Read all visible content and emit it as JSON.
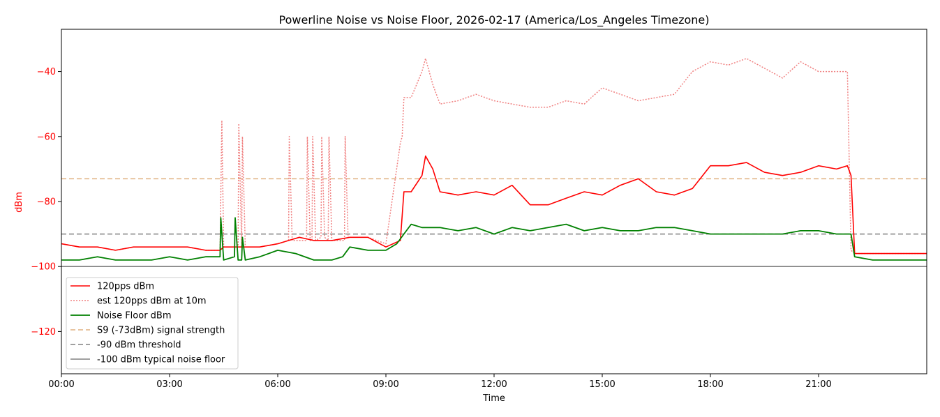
{
  "chart_data": {
    "type": "line",
    "title": "Powerline Noise vs Noise Floor, 2026-02-17 (America/Los_Angeles Timezone)",
    "xlabel": "Time",
    "ylabel": "dBm",
    "xlim": [
      0,
      24
    ],
    "ylim": [
      -133,
      -27
    ],
    "x_ticks": [
      {
        "value": 0,
        "label": "00:00"
      },
      {
        "value": 3,
        "label": "03:00"
      },
      {
        "value": 6,
        "label": "06:00"
      },
      {
        "value": 9,
        "label": "09:00"
      },
      {
        "value": 12,
        "label": "12:00"
      },
      {
        "value": 15,
        "label": "15:00"
      },
      {
        "value": 18,
        "label": "18:00"
      },
      {
        "value": 21,
        "label": "21:00"
      }
    ],
    "y_ticks": [
      {
        "value": -40,
        "label": "−40"
      },
      {
        "value": -60,
        "label": "−60"
      },
      {
        "value": -80,
        "label": "−80"
      },
      {
        "value": -100,
        "label": "−100"
      },
      {
        "value": -120,
        "label": "−120"
      }
    ],
    "grid": false,
    "legend_position": "lower-left",
    "colors": {
      "pps": "#ff0000",
      "est": "#f08080",
      "noise": "#008000",
      "s9": "#e0b080",
      "threshold": "#808080",
      "floor": "#808080",
      "ylabel": "#ff0000"
    },
    "series": [
      {
        "name": "120pps dBm",
        "style": "solid",
        "x": [
          0,
          0.5,
          1,
          1.5,
          2,
          2.5,
          3,
          3.5,
          4,
          4.4,
          4.5,
          4.9,
          5.0,
          5.5,
          6,
          6.3,
          6.6,
          7,
          7.5,
          8,
          8.5,
          9,
          9.4,
          9.5,
          9.7,
          10,
          10.1,
          10.3,
          10.5,
          11,
          11.5,
          12,
          12.5,
          13,
          13.5,
          14,
          14.5,
          15,
          15.5,
          16,
          16.5,
          17,
          17.5,
          18,
          18.5,
          19,
          19.5,
          20,
          20.5,
          21,
          21.5,
          21.8,
          21.9,
          22,
          22.5,
          23,
          24
        ],
        "y": [
          -93,
          -94,
          -94,
          -95,
          -94,
          -94,
          -94,
          -94,
          -95,
          -95,
          -94,
          -94,
          -94,
          -94,
          -93,
          -92,
          -91,
          -92,
          -92,
          -91,
          -91,
          -94,
          -92,
          -77,
          -77,
          -72,
          -66,
          -70,
          -77,
          -78,
          -77,
          -78,
          -75,
          -81,
          -81,
          -79,
          -77,
          -78,
          -75,
          -73,
          -77,
          -78,
          -76,
          -69,
          -69,
          -68,
          -71,
          -72,
          -71,
          -69,
          -70,
          -69,
          -72,
          -96,
          -96,
          -96,
          -96
        ]
      },
      {
        "name": "est 120pps dBm at 10m",
        "style": "dotted",
        "x": [
          0,
          0.5,
          1,
          1.5,
          2,
          2.5,
          3,
          3.5,
          4,
          4.4,
          4.45,
          4.5,
          4.9,
          4.92,
          5.0,
          5.02,
          5.1,
          5.5,
          6,
          6.3,
          6.32,
          6.4,
          6.6,
          6.8,
          6.82,
          6.9,
          6.95,
          6.97,
          7.05,
          7.2,
          7.22,
          7.3,
          7.4,
          7.42,
          7.5,
          7.85,
          7.87,
          7.95,
          8.5,
          9,
          9.4,
          9.45,
          9.5,
          9.7,
          10,
          10.1,
          10.3,
          10.5,
          11,
          11.5,
          12,
          12.5,
          13,
          13.5,
          14,
          14.5,
          15,
          15.5,
          16,
          16.5,
          17,
          17.5,
          18,
          18.5,
          19,
          19.5,
          20,
          20.5,
          21,
          21.5,
          21.8,
          21.9,
          22,
          22.5,
          23,
          24
        ],
        "y": [
          -93,
          -94,
          -94,
          -95,
          -94,
          -94,
          -94,
          -94,
          -95,
          -95,
          -55,
          -94,
          -94,
          -56,
          -94,
          -60,
          -94,
          -94,
          -93,
          -92,
          -60,
          -92,
          -92,
          -92,
          -60,
          -92,
          -92,
          -60,
          -92,
          -91,
          -60,
          -91,
          -92,
          -60,
          -92,
          -92,
          -60,
          -91,
          -91,
          -93,
          -62,
          -60,
          -48,
          -48,
          -40,
          -36,
          -44,
          -50,
          -49,
          -47,
          -49,
          -50,
          -51,
          -51,
          -49,
          -50,
          -45,
          -47,
          -49,
          -48,
          -47,
          -40,
          -37,
          -38,
          -36,
          -39,
          -42,
          -37,
          -40,
          -40,
          -40,
          -95,
          -96,
          -96,
          -96,
          -96
        ]
      },
      {
        "name": "Noise Floor dBm",
        "style": "solid",
        "x": [
          0,
          0.5,
          1,
          1.5,
          2,
          2.5,
          3,
          3.5,
          4,
          4.4,
          4.42,
          4.5,
          4.8,
          4.82,
          4.9,
          5.0,
          5.02,
          5.1,
          5.5,
          6,
          6.5,
          7,
          7.5,
          7.8,
          8,
          8.5,
          9,
          9.3,
          9.5,
          9.7,
          10,
          10.5,
          11,
          11.5,
          12,
          12.5,
          13,
          13.5,
          14,
          14.5,
          15,
          15.5,
          16,
          16.5,
          17,
          17.5,
          18,
          18.5,
          19,
          19.5,
          20,
          20.5,
          21,
          21.5,
          21.9,
          22,
          22.5,
          23,
          24
        ],
        "y": [
          -98,
          -98,
          -97,
          -98,
          -98,
          -98,
          -97,
          -98,
          -97,
          -97,
          -85,
          -98,
          -97,
          -85,
          -98,
          -98,
          -91,
          -98,
          -97,
          -95,
          -96,
          -98,
          -98,
          -97,
          -94,
          -95,
          -95,
          -93,
          -90,
          -87,
          -88,
          -88,
          -89,
          -88,
          -90,
          -88,
          -89,
          -88,
          -87,
          -89,
          -88,
          -89,
          -89,
          -88,
          -88,
          -89,
          -90,
          -90,
          -90,
          -90,
          -90,
          -89,
          -89,
          -90,
          -90,
          -97,
          -98,
          -98,
          -98
        ]
      },
      {
        "name": "S9 (-73dBm) signal strength",
        "style": "dashed",
        "x": [
          0,
          24
        ],
        "y": [
          -73,
          -73
        ]
      },
      {
        "name": "-90 dBm threshold",
        "style": "dashed",
        "x": [
          0,
          24
        ],
        "y": [
          -90,
          -90
        ]
      },
      {
        "name": "-100 dBm typical noise floor",
        "style": "solid",
        "x": [
          0,
          24
        ],
        "y": [
          -100,
          -100
        ]
      }
    ]
  }
}
